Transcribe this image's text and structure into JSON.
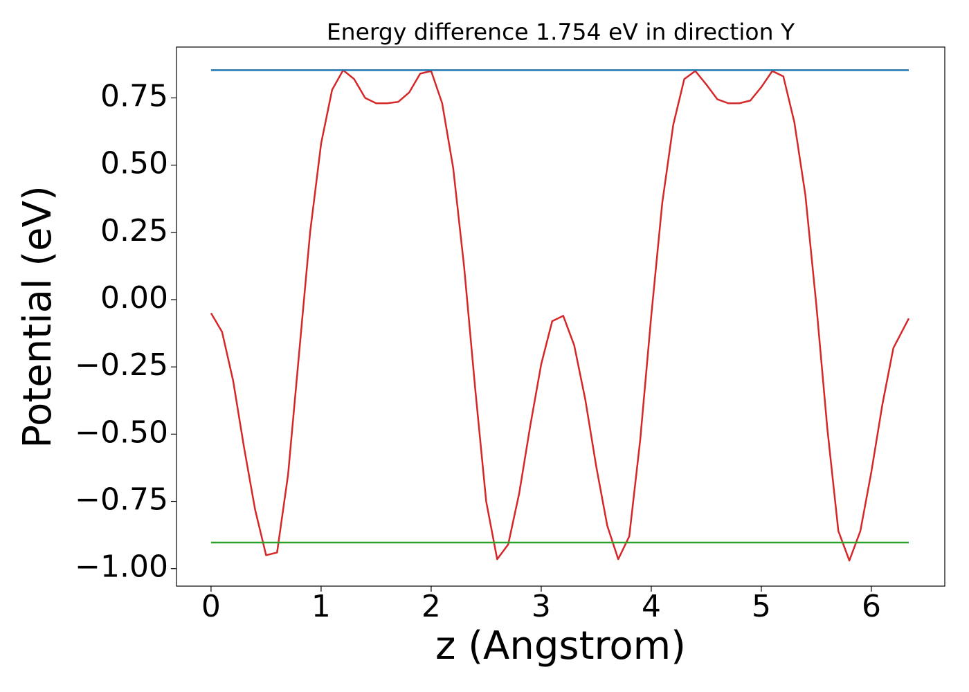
{
  "chart_data": {
    "type": "line",
    "title": "Energy difference 1.754 eV in direction Y",
    "xlabel": "z (Angstrom)",
    "ylabel": "Potential (eV)",
    "xlim": [
      -0.314,
      6.667
    ],
    "ylim": [
      -1.065,
      0.939
    ],
    "xticks": [
      0,
      1,
      2,
      3,
      4,
      5,
      6
    ],
    "yticks": [
      {
        "value": -1.0,
        "label": "−1.00"
      },
      {
        "value": -0.75,
        "label": "−0.75"
      },
      {
        "value": -0.5,
        "label": "−0.50"
      },
      {
        "value": -0.25,
        "label": "−0.25"
      },
      {
        "value": 0.0,
        "label": "0.00"
      },
      {
        "value": 0.25,
        "label": "0.25"
      },
      {
        "value": 0.5,
        "label": "0.50"
      },
      {
        "value": 0.75,
        "label": "0.75"
      }
    ],
    "grid": false,
    "series": [
      {
        "color": "#d62728",
        "x": [
          0,
          0.1,
          0.2,
          0.3,
          0.4,
          0.5,
          0.6,
          0.7,
          0.8,
          0.9,
          1.0,
          1.1,
          1.2,
          1.3,
          1.4,
          1.5,
          1.6,
          1.7,
          1.8,
          1.9,
          2.0,
          2.1,
          2.2,
          2.3,
          2.4,
          2.5,
          2.6,
          2.7,
          2.8,
          2.9,
          3.0,
          3.1,
          3.2,
          3.3,
          3.4,
          3.5,
          3.6,
          3.7,
          3.8,
          3.9,
          4.0,
          4.1,
          4.2,
          4.3,
          4.4,
          4.5,
          4.6,
          4.7,
          4.8,
          4.9,
          5.0,
          5.1,
          5.2,
          5.3,
          5.4,
          5.5,
          5.6,
          5.7,
          5.8,
          5.9,
          6.0,
          6.1,
          6.2,
          6.34
        ],
        "values": [
          -0.05,
          -0.12,
          -0.3,
          -0.55,
          -0.78,
          -0.95,
          -0.94,
          -0.65,
          -0.2,
          0.25,
          0.58,
          0.78,
          0.853,
          0.82,
          0.75,
          0.73,
          0.73,
          0.735,
          0.77,
          0.84,
          0.85,
          0.73,
          0.49,
          0.12,
          -0.33,
          -0.75,
          -0.965,
          -0.91,
          -0.72,
          -0.47,
          -0.24,
          -0.08,
          -0.06,
          -0.17,
          -0.37,
          -0.62,
          -0.84,
          -0.965,
          -0.88,
          -0.52,
          -0.06,
          0.36,
          0.65,
          0.82,
          0.85,
          0.8,
          0.745,
          0.73,
          0.73,
          0.74,
          0.79,
          0.85,
          0.83,
          0.66,
          0.39,
          -0.02,
          -0.48,
          -0.86,
          -0.97,
          -0.86,
          -0.64,
          -0.39,
          -0.18,
          -0.07
        ]
      },
      {
        "color": "#1f77b4",
        "x": [
          0,
          6.34
        ],
        "values": [
          0.853,
          0.853
        ]
      },
      {
        "color": "#2ca02c",
        "x": [
          0,
          6.34
        ],
        "values": [
          -0.903,
          -0.903
        ]
      }
    ]
  }
}
